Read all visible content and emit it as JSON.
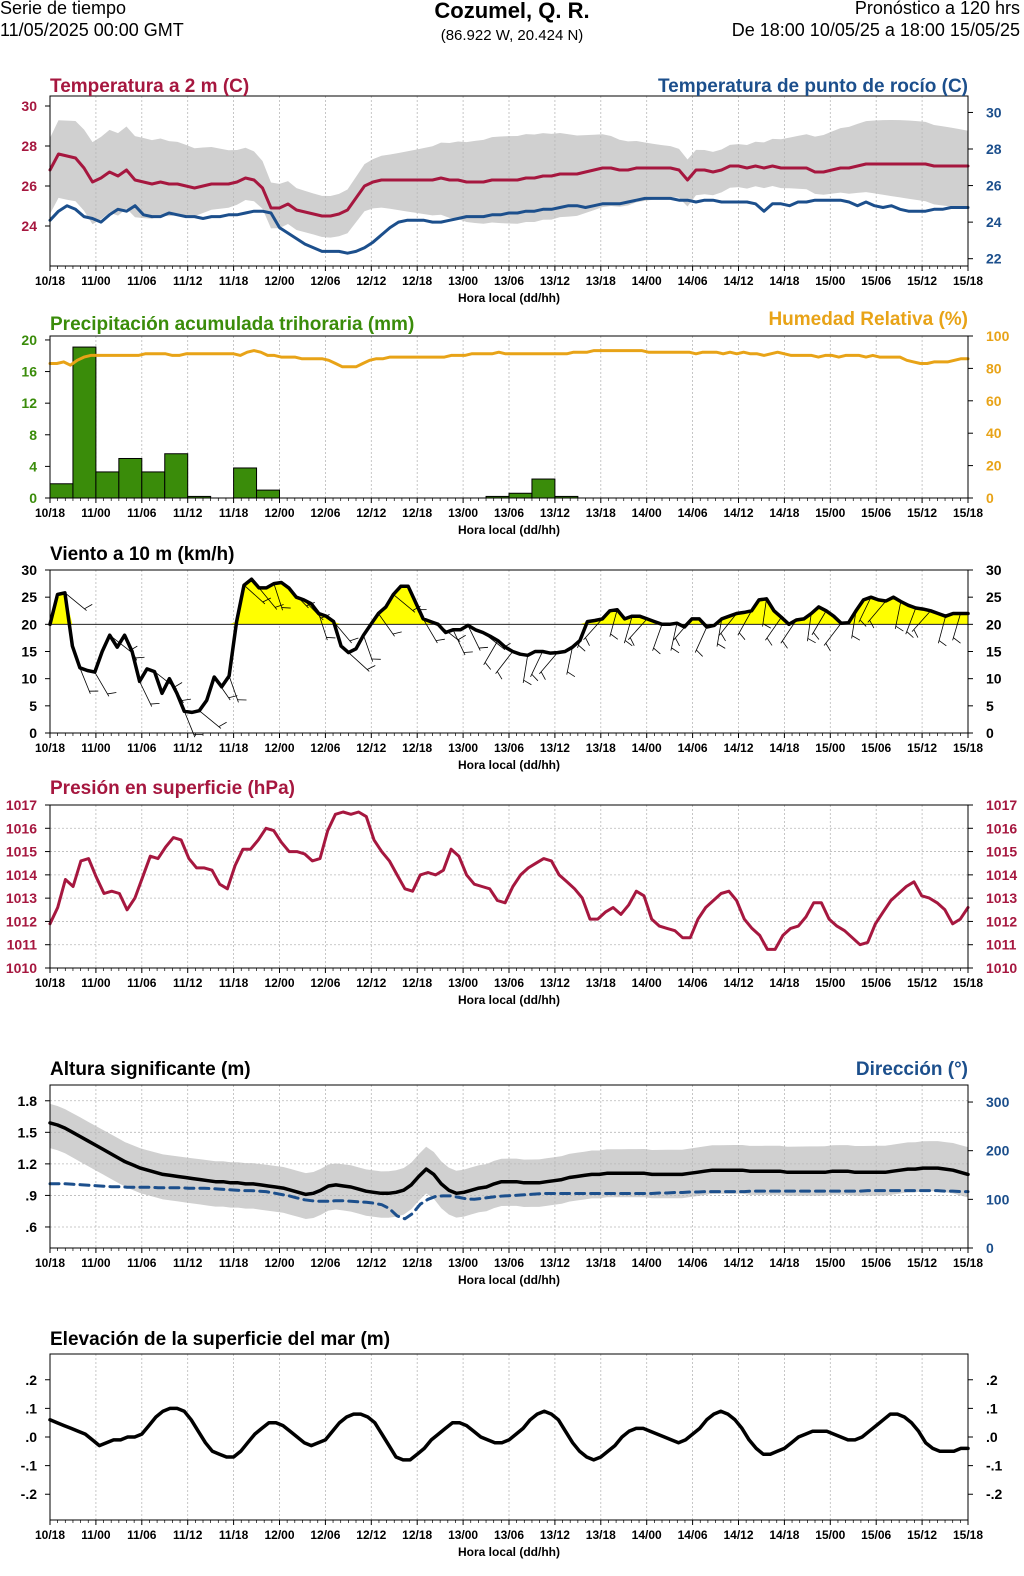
{
  "header": {
    "left_line1": "Serie de tiempo",
    "left_line2": "11/05/2025 00:00 GMT",
    "title": "Cozumel, Q. R.",
    "coords": "(86.922 W, 20.424 N)",
    "right_line1": "Pronóstico a 120 hrs",
    "right_line2": "De 18:00 10/05/25 a 18:00 15/05/25"
  },
  "colors": {
    "temperature": "#a6173f",
    "dewpoint": "#1c4f8c",
    "precipitation": "#3a8c0a",
    "humidity": "#e8a317",
    "wind_fill": "#ffff00",
    "wave_direction": "#1c4f8c",
    "band": "#d0d0d0"
  },
  "x_axis": {
    "label": "Hora local (dd/hh)",
    "ticks": [
      "10/18",
      "11/00",
      "11/06",
      "11/12",
      "11/18",
      "12/00",
      "12/06",
      "12/12",
      "12/18",
      "13/00",
      "13/06",
      "13/12",
      "13/18",
      "14/00",
      "14/06",
      "14/12",
      "14/18",
      "15/00",
      "15/06",
      "15/12",
      "15/18"
    ]
  },
  "chart_data": [
    {
      "type": "line",
      "title_left": "Temperatura a 2 m (C)",
      "title_right": "Temperatura de punto de rocío (C)",
      "ylim_left": [
        22,
        30.5
      ],
      "yticks_left": [
        "30",
        "28",
        "26",
        "24"
      ],
      "ylim_right": [
        21.6,
        30.9
      ],
      "yticks_right": [
        "30",
        "28",
        "26",
        "24",
        "22"
      ],
      "series": [
        {
          "axis": "left",
          "values": [
            26.8,
            27.6,
            27.5,
            27.4,
            26.9,
            26.2,
            26.4,
            26.7,
            26.5,
            26.8,
            26.3,
            26.2,
            26.1,
            26.2,
            26.1,
            26.1,
            26.0,
            25.9,
            26.0,
            26.1,
            26.1,
            26.1,
            26.2,
            26.4,
            26.3,
            25.9,
            24.9,
            24.9,
            25.1,
            24.8,
            24.7,
            24.6,
            24.5,
            24.5,
            24.6,
            24.8,
            25.4,
            26.0,
            26.2,
            26.3,
            26.3,
            26.3,
            26.3,
            26.3,
            26.3,
            26.3,
            26.4,
            26.3,
            26.3,
            26.2,
            26.2,
            26.2,
            26.3,
            26.3,
            26.3,
            26.3,
            26.4,
            26.4,
            26.5,
            26.5,
            26.6,
            26.6,
            26.6,
            26.7,
            26.8,
            26.9,
            26.9,
            26.8,
            26.8,
            26.9,
            26.9,
            26.9,
            26.9,
            26.9,
            26.8,
            26.3,
            26.8,
            26.8,
            26.7,
            26.8,
            27.0,
            27.0,
            26.9,
            27.0,
            26.9,
            27.0,
            26.9,
            26.9,
            26.9,
            26.9,
            26.7,
            26.7,
            26.8,
            26.9,
            26.9,
            27.0,
            27.1,
            27.1,
            27.1,
            27.1,
            27.1,
            27.1,
            27.1,
            27.1,
            27.0,
            27.0,
            27.0,
            27.0,
            27.0
          ]
        },
        {
          "axis": "right",
          "values": [
            24.1,
            24.6,
            24.9,
            24.7,
            24.3,
            24.2,
            24.0,
            24.4,
            24.7,
            24.6,
            24.9,
            24.4,
            24.3,
            24.3,
            24.5,
            24.4,
            24.3,
            24.3,
            24.2,
            24.3,
            24.3,
            24.4,
            24.4,
            24.5,
            24.6,
            24.6,
            24.5,
            23.7,
            23.4,
            23.1,
            22.8,
            22.6,
            22.4,
            22.4,
            22.4,
            22.3,
            22.4,
            22.6,
            22.9,
            23.3,
            23.7,
            24.0,
            24.1,
            24.1,
            24.1,
            24.0,
            24.0,
            24.1,
            24.2,
            24.3,
            24.3,
            24.3,
            24.4,
            24.4,
            24.5,
            24.5,
            24.6,
            24.6,
            24.7,
            24.7,
            24.8,
            24.9,
            24.9,
            24.8,
            24.9,
            25.0,
            25.0,
            25.0,
            25.1,
            25.2,
            25.3,
            25.3,
            25.3,
            25.3,
            25.2,
            25.2,
            25.1,
            25.2,
            25.2,
            25.1,
            25.1,
            25.1,
            25.1,
            25.0,
            24.6,
            25.0,
            25.0,
            24.9,
            25.1,
            25.1,
            25.2,
            25.2,
            25.2,
            25.2,
            25.1,
            24.9,
            25.1,
            24.9,
            24.8,
            24.9,
            24.7,
            24.6,
            24.6,
            24.6,
            24.7,
            24.7,
            24.8,
            24.8,
            24.8
          ]
        }
      ]
    },
    {
      "type": "bar",
      "title_left": "Precipitación acumulada trihoraria (mm)",
      "title_right": "Humedad Relativa (%)",
      "ylim_left": [
        0,
        20.5
      ],
      "yticks_left": [
        "20",
        "16",
        "12",
        "8",
        "4",
        "0"
      ],
      "ylim_right": [
        0,
        100
      ],
      "yticks_right": [
        "100",
        "80",
        "60",
        "40",
        "20",
        "0"
      ],
      "bar_values": [
        1.8,
        19.1,
        3.3,
        5.0,
        3.3,
        5.6,
        0.2,
        0.0,
        3.8,
        1.0,
        0.0,
        0.0,
        0.0,
        0.0,
        0.0,
        0.0,
        0.0,
        0.0,
        0.0,
        0.2,
        0.6,
        2.4,
        0.2,
        0.0,
        0.0,
        0.0,
        0.0,
        0.0,
        0.0,
        0.0,
        0.0,
        0.0,
        0.0,
        0.0,
        0.0,
        0.0,
        0.0,
        0.0,
        0.0,
        0.0
      ],
      "humidity_values": [
        83,
        83,
        84,
        82,
        85,
        87,
        88,
        88,
        88,
        88,
        88,
        88,
        88,
        88,
        89,
        89,
        89,
        89,
        88,
        88,
        89,
        89,
        89,
        89,
        89,
        89,
        89,
        89,
        88,
        90,
        91,
        90,
        88,
        88,
        87,
        87,
        87,
        86,
        86,
        86,
        86,
        85,
        83,
        81,
        81,
        81,
        83,
        85,
        86,
        86,
        87,
        87,
        87,
        87,
        87,
        87,
        87,
        87,
        87,
        88,
        88,
        88,
        89,
        89,
        89,
        89,
        90,
        89,
        89,
        89,
        89,
        89,
        89,
        89,
        89,
        89,
        89,
        90,
        90,
        90,
        91,
        91,
        91,
        91,
        91,
        91,
        91,
        91,
        90,
        90,
        90,
        90,
        90,
        90,
        90,
        89,
        90,
        90,
        90,
        89,
        90,
        89,
        90,
        89,
        89,
        88,
        89,
        90,
        89,
        88,
        88,
        88,
        88,
        87,
        88,
        88,
        87,
        88,
        88,
        88,
        87,
        88,
        87,
        87,
        87,
        87,
        85,
        84,
        83,
        83,
        84,
        84,
        84,
        85,
        86,
        86
      ]
    },
    {
      "type": "line",
      "title_left": "Viento a 10 m (km/h)",
      "ylim": [
        0,
        30
      ],
      "yticks": [
        "30",
        "25",
        "20",
        "15",
        "10",
        "5",
        "0"
      ],
      "threshold": 20,
      "values": [
        20,
        25.5,
        25.8,
        16,
        12,
        11.5,
        11.2,
        15,
        18,
        15.8,
        18,
        15,
        9.5,
        11.8,
        11.3,
        7.3,
        10,
        7.3,
        4,
        3.8,
        4.1,
        6,
        10.3,
        8.5,
        10.5,
        20.5,
        27.2,
        28.3,
        26.7,
        26.7,
        27.5,
        27.7,
        26.7,
        25,
        24.5,
        23.8,
        22,
        21.5,
        20.5,
        16,
        14.8,
        15.5,
        18,
        20,
        22,
        23.2,
        25.5,
        27,
        27,
        24,
        21,
        20.5,
        20,
        18.5,
        19,
        19,
        19.8,
        19,
        18.5,
        17.8,
        17,
        15.8,
        15,
        14.5,
        14.3,
        15,
        15,
        14.7,
        14.8,
        15,
        15.8,
        17,
        20.5,
        20.7,
        21,
        22.5,
        22.7,
        21,
        21.5,
        21.5,
        21,
        20.5,
        20,
        20,
        20.2,
        19.5,
        21,
        21,
        19.5,
        19.8,
        21,
        21.5,
        22,
        22.2,
        22.5,
        24.5,
        24.7,
        22.5,
        21.3,
        20,
        20.8,
        21,
        22,
        23.2,
        22.5,
        21.5,
        20.2,
        20.3,
        22.5,
        24.5,
        25,
        24.5,
        24.3,
        25,
        24.2,
        23.5,
        23,
        22.8,
        22.5,
        22,
        21.5,
        22,
        22,
        22
      ]
    },
    {
      "type": "line",
      "title_left": "Presión en superficie (hPa)",
      "ylim": [
        1010,
        1017
      ],
      "yticks": [
        "1017",
        "1016",
        "1015",
        "1014",
        "1013",
        "1012",
        "1011",
        "1010"
      ],
      "values": [
        1011.9,
        1012.6,
        1013.8,
        1013.5,
        1014.6,
        1014.7,
        1013.9,
        1013.2,
        1013.3,
        1013.2,
        1012.5,
        1013.0,
        1013.9,
        1014.8,
        1014.7,
        1015.2,
        1015.6,
        1015.5,
        1014.7,
        1014.3,
        1014.3,
        1014.2,
        1013.6,
        1013.4,
        1014.4,
        1015.1,
        1015.1,
        1015.5,
        1016.0,
        1015.9,
        1015.4,
        1015.0,
        1015.0,
        1014.9,
        1014.6,
        1014.7,
        1015.9,
        1016.6,
        1016.7,
        1016.6,
        1016.7,
        1016.5,
        1015.5,
        1015.0,
        1014.6,
        1014.0,
        1013.4,
        1013.3,
        1014.0,
        1014.1,
        1014.0,
        1014.2,
        1015.1,
        1014.8,
        1014.0,
        1013.6,
        1013.5,
        1013.4,
        1012.9,
        1012.8,
        1013.5,
        1014.0,
        1014.3,
        1014.5,
        1014.7,
        1014.6,
        1014.0,
        1013.7,
        1013.4,
        1013.0,
        1012.1,
        1012.1,
        1012.4,
        1012.6,
        1012.3,
        1012.7,
        1013.3,
        1013.1,
        1012.1,
        1011.8,
        1011.7,
        1011.6,
        1011.3,
        1011.3,
        1012.1,
        1012.6,
        1012.9,
        1013.2,
        1013.3,
        1012.9,
        1012.1,
        1011.7,
        1011.4,
        1010.8,
        1010.8,
        1011.4,
        1011.7,
        1011.8,
        1012.2,
        1012.8,
        1012.8,
        1012.1,
        1011.8,
        1011.6,
        1011.3,
        1011.0,
        1011.1,
        1011.9,
        1012.4,
        1012.9,
        1013.2,
        1013.5,
        1013.7,
        1013.1,
        1013.0,
        1012.8,
        1012.5,
        1011.9,
        1012.1,
        1012.6
      ]
    },
    {
      "type": "line",
      "title_left": "Altura significante (m)",
      "title_right": "Dirección (°)",
      "ylim_left": [
        0.4,
        1.95
      ],
      "yticks_left": [
        "1.8",
        "1.5",
        "1.2",
        ".9",
        ".6"
      ],
      "ylim_right": [
        0,
        335
      ],
      "yticks_right": [
        "300",
        "200",
        "100",
        "0"
      ],
      "series": [
        {
          "axis": "left",
          "values": [
            1.59,
            1.57,
            1.54,
            1.5,
            1.46,
            1.42,
            1.38,
            1.34,
            1.3,
            1.26,
            1.22,
            1.19,
            1.16,
            1.14,
            1.12,
            1.1,
            1.09,
            1.08,
            1.07,
            1.06,
            1.05,
            1.04,
            1.03,
            1.03,
            1.02,
            1.02,
            1.01,
            1.01,
            1.0,
            0.99,
            0.98,
            0.97,
            0.95,
            0.93,
            0.91,
            0.92,
            0.95,
            0.99,
            1.0,
            0.99,
            0.98,
            0.96,
            0.94,
            0.93,
            0.92,
            0.92,
            0.93,
            0.95,
            1.0,
            1.08,
            1.15,
            1.1,
            1.01,
            0.95,
            0.92,
            0.93,
            0.95,
            0.97,
            0.98,
            1.01,
            1.03,
            1.03,
            1.03,
            1.02,
            1.02,
            1.02,
            1.03,
            1.04,
            1.05,
            1.07,
            1.08,
            1.09,
            1.1,
            1.1,
            1.11,
            1.11,
            1.11,
            1.11,
            1.11,
            1.11,
            1.1,
            1.1,
            1.1,
            1.1,
            1.1,
            1.11,
            1.12,
            1.13,
            1.14,
            1.14,
            1.14,
            1.14,
            1.14,
            1.13,
            1.13,
            1.13,
            1.13,
            1.13,
            1.12,
            1.12,
            1.12,
            1.12,
            1.12,
            1.12,
            1.13,
            1.13,
            1.13,
            1.12,
            1.12,
            1.12,
            1.12,
            1.12,
            1.13,
            1.14,
            1.15,
            1.15,
            1.16,
            1.16,
            1.16,
            1.15,
            1.14,
            1.12,
            1.1
          ]
        },
        {
          "axis": "right",
          "values": [
            132,
            132,
            132,
            131,
            130,
            129,
            128,
            127,
            126,
            126,
            125,
            125,
            125,
            125,
            124,
            124,
            124,
            124,
            123,
            123,
            123,
            122,
            121,
            120,
            119,
            118,
            118,
            117,
            116,
            113,
            110,
            107,
            103,
            99,
            97,
            96,
            96,
            97,
            97,
            96,
            95,
            94,
            92,
            89,
            81,
            66,
            60,
            71,
            90,
            100,
            106,
            107,
            107,
            104,
            101,
            100,
            102,
            104,
            106,
            107,
            108,
            109,
            110,
            111,
            112,
            112,
            112,
            112,
            112,
            112,
            112,
            112,
            112,
            112,
            112,
            112,
            112,
            112,
            112,
            113,
            113,
            114,
            114,
            115,
            115,
            116,
            116,
            116,
            116,
            116,
            116,
            117,
            117,
            117,
            117,
            117,
            117,
            117,
            117,
            117,
            117,
            117,
            117,
            117,
            117,
            117,
            118,
            118,
            118,
            118,
            118,
            118,
            118,
            118,
            118,
            118,
            117,
            117,
            116,
            116
          ]
        }
      ]
    },
    {
      "type": "line",
      "title_left": "Elevación de la superficie del mar (m)",
      "ylim": [
        -0.29,
        0.29
      ],
      "yticks": [
        ".2",
        ".1",
        ".0",
        "-.1",
        "-.2"
      ],
      "values": [
        0.06,
        0.05,
        0.04,
        0.03,
        0.02,
        0.01,
        -0.01,
        -0.03,
        -0.02,
        -0.01,
        -0.01,
        0.0,
        0.0,
        0.01,
        0.04,
        0.07,
        0.09,
        0.1,
        0.1,
        0.09,
        0.06,
        0.02,
        -0.02,
        -0.05,
        -0.06,
        -0.07,
        -0.07,
        -0.05,
        -0.02,
        0.01,
        0.03,
        0.05,
        0.05,
        0.04,
        0.02,
        0.0,
        -0.02,
        -0.03,
        -0.02,
        -0.01,
        0.02,
        0.05,
        0.07,
        0.08,
        0.08,
        0.07,
        0.05,
        0.01,
        -0.03,
        -0.07,
        -0.08,
        -0.08,
        -0.06,
        -0.04,
        -0.01,
        0.01,
        0.03,
        0.05,
        0.05,
        0.04,
        0.02,
        0.0,
        -0.01,
        -0.02,
        -0.02,
        -0.01,
        0.01,
        0.03,
        0.06,
        0.08,
        0.09,
        0.08,
        0.06,
        0.02,
        -0.02,
        -0.05,
        -0.07,
        -0.08,
        -0.07,
        -0.05,
        -0.03,
        0.0,
        0.02,
        0.03,
        0.03,
        0.02,
        0.01,
        0.0,
        -0.01,
        -0.02,
        -0.01,
        0.01,
        0.03,
        0.06,
        0.08,
        0.09,
        0.08,
        0.06,
        0.03,
        -0.01,
        -0.04,
        -0.06,
        -0.06,
        -0.05,
        -0.04,
        -0.02,
        0.0,
        0.01,
        0.02,
        0.02,
        0.02,
        0.01,
        0.0,
        -0.01,
        -0.01,
        0.0,
        0.02,
        0.04,
        0.06,
        0.08,
        0.08,
        0.07,
        0.05,
        0.02,
        -0.02,
        -0.04,
        -0.05,
        -0.05,
        -0.05,
        -0.04,
        -0.04
      ]
    }
  ]
}
